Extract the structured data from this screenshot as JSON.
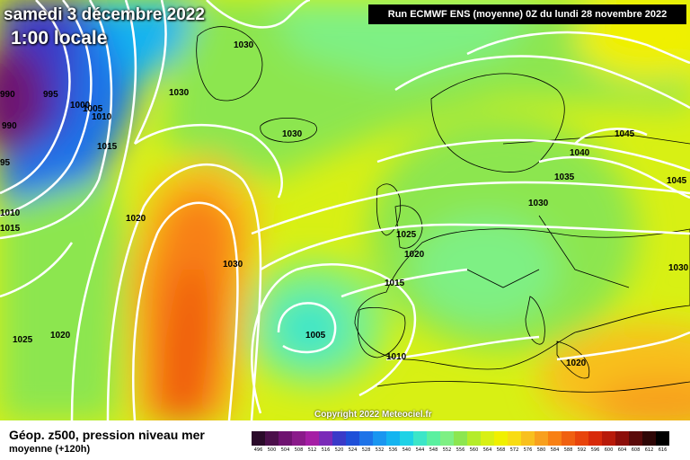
{
  "header": {
    "date": "samedi 3 décembre 2022",
    "local_time": "1:00 locale",
    "run_info": "Run ECMWF ENS (moyenne) 0Z du lundi 28 novembre 2022"
  },
  "copyright": "Copyright 2022 Meteociel.fr",
  "legend": {
    "title": "Géop. z500, pression niveau mer",
    "subtitle": "moyenne  (+120h)",
    "scale": [
      {
        "label": "496",
        "color": "#2a0a2a"
      },
      {
        "label": "500",
        "color": "#4b0f4b"
      },
      {
        "label": "504",
        "color": "#6e1270"
      },
      {
        "label": "508",
        "color": "#8a1a8a"
      },
      {
        "label": "512",
        "color": "#a51ea5"
      },
      {
        "label": "516",
        "color": "#7a2ab8"
      },
      {
        "label": "520",
        "color": "#3a3ac8"
      },
      {
        "label": "524",
        "color": "#1e4fd8"
      },
      {
        "label": "528",
        "color": "#1e73e8"
      },
      {
        "label": "532",
        "color": "#1a96f0"
      },
      {
        "label": "536",
        "color": "#14b4f0"
      },
      {
        "label": "540",
        "color": "#1ed2e6"
      },
      {
        "label": "544",
        "color": "#3ce6c8"
      },
      {
        "label": "548",
        "color": "#5af0a0"
      },
      {
        "label": "552",
        "color": "#7ef084"
      },
      {
        "label": "556",
        "color": "#8ce650"
      },
      {
        "label": "560",
        "color": "#b4ec2a"
      },
      {
        "label": "564",
        "color": "#d8f014"
      },
      {
        "label": "568",
        "color": "#f0f000"
      },
      {
        "label": "572",
        "color": "#f8dc14"
      },
      {
        "label": "576",
        "color": "#f8c01e"
      },
      {
        "label": "580",
        "color": "#f8a01e"
      },
      {
        "label": "584",
        "color": "#f88014"
      },
      {
        "label": "588",
        "color": "#f06010"
      },
      {
        "label": "592",
        "color": "#e8440c"
      },
      {
        "label": "596",
        "color": "#d82a0a"
      },
      {
        "label": "600",
        "color": "#b81a0a"
      },
      {
        "label": "604",
        "color": "#8c0e0a"
      },
      {
        "label": "608",
        "color": "#5a0a0a"
      },
      {
        "label": "612",
        "color": "#2e0606"
      },
      {
        "label": "616",
        "color": "#000000"
      }
    ]
  },
  "isobar_labels": [
    {
      "text": "990"
    },
    {
      "text": "995"
    },
    {
      "text": "1000"
    },
    {
      "text": "1005"
    },
    {
      "text": "1010"
    },
    {
      "text": "1015"
    },
    {
      "text": "1030"
    },
    {
      "text": "1030"
    },
    {
      "text": "1030"
    },
    {
      "text": "990"
    },
    {
      "text": "95"
    },
    {
      "text": "1010"
    },
    {
      "text": "1015"
    },
    {
      "text": "1020"
    },
    {
      "text": "1030"
    },
    {
      "text": "1025"
    },
    {
      "text": "1020"
    },
    {
      "text": "1025"
    },
    {
      "text": "1020"
    },
    {
      "text": "1015"
    },
    {
      "text": "1005"
    },
    {
      "text": "1010"
    },
    {
      "text": "1045"
    },
    {
      "text": "1040"
    },
    {
      "text": "1035"
    },
    {
      "text": "1030"
    },
    {
      "text": "1045"
    },
    {
      "text": "1030"
    },
    {
      "text": "1020"
    }
  ]
}
